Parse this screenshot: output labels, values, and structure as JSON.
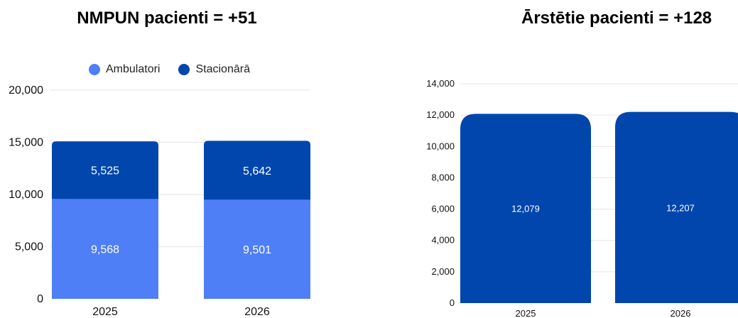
{
  "colors": {
    "ambulatori": "#4f7ff6",
    "stacionara": "#0046ad",
    "grid": "#e5e5e5",
    "axis_text": "#111111",
    "bar_label": "#ffffff"
  },
  "chart_data": [
    {
      "type": "bar",
      "stacked": true,
      "title": "NMPUN pacienti = +51",
      "categories": [
        "2025",
        "2026"
      ],
      "series": [
        {
          "name": "Ambulatori",
          "values": [
            9568,
            9501
          ],
          "color": "#4f7ff6"
        },
        {
          "name": "Stacionārā",
          "values": [
            5525,
            5642
          ],
          "color": "#0046ad"
        }
      ],
      "value_labels": [
        [
          "9,568",
          "9,501"
        ],
        [
          "5,525",
          "5,642"
        ]
      ],
      "ylim": [
        0,
        20000
      ],
      "yticks": [
        0,
        5000,
        10000,
        15000,
        20000
      ],
      "ytick_labels": [
        "0",
        "5,000",
        "10,000",
        "15,000",
        "20,000"
      ],
      "grid": true,
      "legend_position": "top"
    },
    {
      "type": "bar",
      "title": "Ārstētie pacienti = +128",
      "categories": [
        "2025",
        "2026"
      ],
      "values": [
        12079,
        12207
      ],
      "value_labels": [
        "12,079",
        "12,207"
      ],
      "color": "#0046ad",
      "ylim": [
        0,
        14000
      ],
      "yticks": [
        0,
        2000,
        4000,
        6000,
        8000,
        10000,
        12000,
        14000
      ],
      "ytick_labels": [
        "0",
        "2,000",
        "4,000",
        "6,000",
        "8,000",
        "10,000",
        "12,000",
        "14,000"
      ],
      "grid": true,
      "legend_position": "none"
    }
  ]
}
